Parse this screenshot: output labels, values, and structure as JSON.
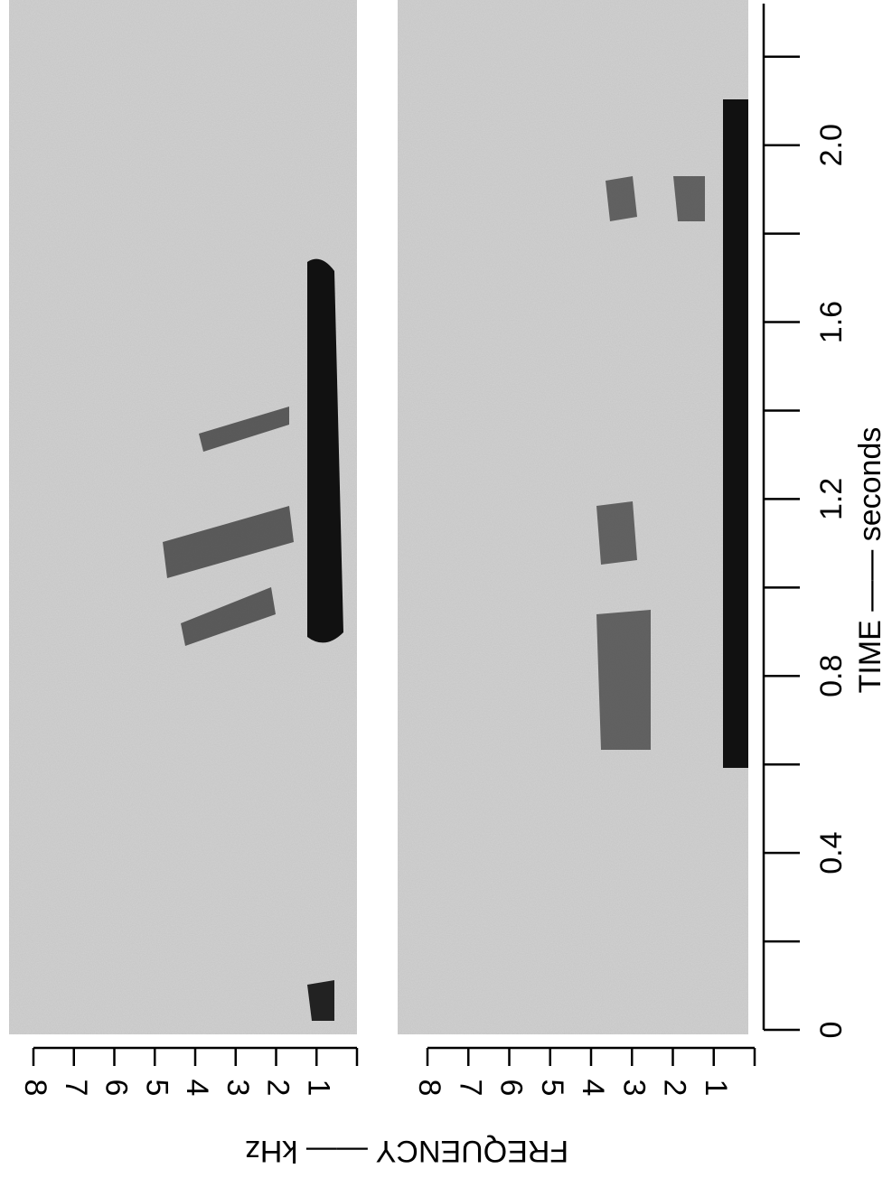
{
  "chart_data": [
    {
      "type": "spectrogram",
      "ylabel": "FREQUENCY —— kHz",
      "ylim": [
        0,
        8
      ],
      "yticks": [
        1,
        2,
        3,
        4,
        5,
        6,
        7,
        8
      ]
    },
    {
      "type": "spectrogram",
      "xlabel": "TIME —— seconds",
      "xlim": [
        0,
        2.32
      ],
      "xticks": [
        0,
        0.4,
        0.8,
        1.2,
        1.6,
        {
          "value": 2,
          "label": "2.0"
        }
      ],
      "xminor_ticks": [
        0.2,
        0.6,
        1,
        1.4,
        1.8,
        2.2
      ],
      "ylim": [
        0,
        8
      ],
      "yticks": [
        1,
        2,
        3,
        4,
        5,
        6,
        7,
        8
      ]
    }
  ]
}
